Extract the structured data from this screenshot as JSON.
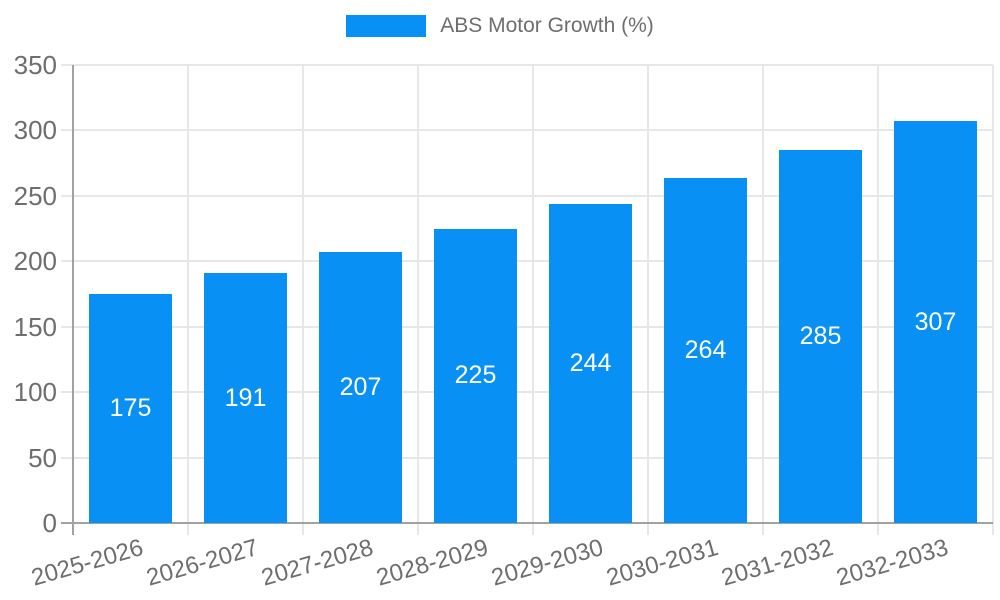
{
  "chart_data": {
    "type": "bar",
    "legend": {
      "label": "ABS Motor Growth (%)",
      "position": "top"
    },
    "categories": [
      "2025-2026",
      "2026-2027",
      "2027-2028",
      "2028-2029",
      "2029-2030",
      "2030-2031",
      "2031-2032",
      "2032-2033"
    ],
    "values": [
      175,
      191,
      207,
      225,
      244,
      264,
      285,
      307
    ],
    "bar_labels": [
      "175",
      "191",
      "207",
      "225",
      "244",
      "264",
      "285",
      "307"
    ],
    "xlabel": "",
    "ylabel": "",
    "ylim": [
      0,
      350
    ],
    "ytick_step": 50,
    "ytick_labels": [
      "0",
      "50",
      "100",
      "150",
      "200",
      "250",
      "300",
      "350"
    ],
    "grid": true,
    "colors": {
      "bar": "#0990f5",
      "bar_label_text": "#ffffff",
      "axis_text": "#6e6e6e",
      "gridline": "#e7e7e7",
      "axis_line": "#a2a2a2",
      "background": "#ffffff"
    }
  }
}
